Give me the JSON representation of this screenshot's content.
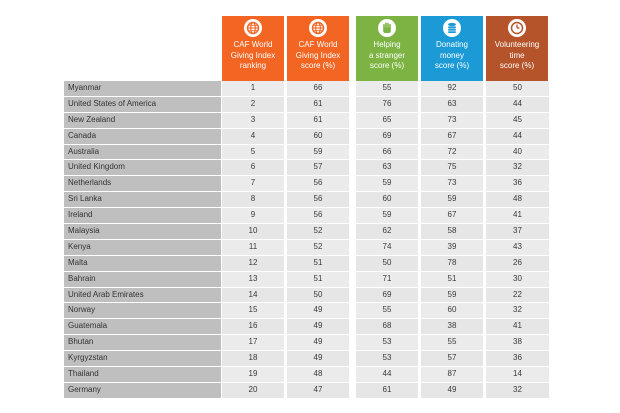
{
  "headers": [
    {
      "label": "CAF World\nGiving Index\nranking",
      "color": "#f26522",
      "icon": "globe-icon"
    },
    {
      "label": "CAF World\nGiving Index\nscore (%)",
      "color": "#f26522",
      "icon": "globe-icon"
    },
    {
      "label": "Helping\na stranger\nscore (%)",
      "color": "#7cb342",
      "icon": "hand-icon"
    },
    {
      "label": "Donating\nmoney\nscore (%)",
      "color": "#1b9ad6",
      "icon": "coins-icon"
    },
    {
      "label": "Volunteering\ntime\nscore (%)",
      "color": "#b5532a",
      "icon": "clock-icon"
    }
  ],
  "rows": [
    {
      "country": "Myanmar",
      "rank": "1",
      "giving": "66",
      "helping": "55",
      "donating": "92",
      "volunteering": "50"
    },
    {
      "country": "United States of America",
      "rank": "2",
      "giving": "61",
      "helping": "76",
      "donating": "63",
      "volunteering": "44"
    },
    {
      "country": "New Zealand",
      "rank": "3",
      "giving": "61",
      "helping": "65",
      "donating": "73",
      "volunteering": "45"
    },
    {
      "country": "Canada",
      "rank": "4",
      "giving": "60",
      "helping": "69",
      "donating": "67",
      "volunteering": "44"
    },
    {
      "country": "Australia",
      "rank": "5",
      "giving": "59",
      "helping": "66",
      "donating": "72",
      "volunteering": "40"
    },
    {
      "country": "United Kingdom",
      "rank": "6",
      "giving": "57",
      "helping": "63",
      "donating": "75",
      "volunteering": "32"
    },
    {
      "country": "Netherlands",
      "rank": "7",
      "giving": "56",
      "helping": "59",
      "donating": "73",
      "volunteering": "36"
    },
    {
      "country": "Sri Lanka",
      "rank": "8",
      "giving": "56",
      "helping": "60",
      "donating": "59",
      "volunteering": "48"
    },
    {
      "country": "Ireland",
      "rank": "9",
      "giving": "56",
      "helping": "59",
      "donating": "67",
      "volunteering": "41"
    },
    {
      "country": "Malaysia",
      "rank": "10",
      "giving": "52",
      "helping": "62",
      "donating": "58",
      "volunteering": "37"
    },
    {
      "country": "Kenya",
      "rank": "11",
      "giving": "52",
      "helping": "74",
      "donating": "39",
      "volunteering": "43"
    },
    {
      "country": "Malta",
      "rank": "12",
      "giving": "51",
      "helping": "50",
      "donating": "78",
      "volunteering": "26"
    },
    {
      "country": "Bahrain",
      "rank": "13",
      "giving": "51",
      "helping": "71",
      "donating": "51",
      "volunteering": "30"
    },
    {
      "country": "United Arab Emirates",
      "rank": "14",
      "giving": "50",
      "helping": "69",
      "donating": "59",
      "volunteering": "22"
    },
    {
      "country": "Norway",
      "rank": "15",
      "giving": "49",
      "helping": "55",
      "donating": "60",
      "volunteering": "32"
    },
    {
      "country": "Guatemala",
      "rank": "16",
      "giving": "49",
      "helping": "68",
      "donating": "38",
      "volunteering": "41"
    },
    {
      "country": "Bhutan",
      "rank": "17",
      "giving": "49",
      "helping": "53",
      "donating": "55",
      "volunteering": "38"
    },
    {
      "country": "Kyrgyzstan",
      "rank": "18",
      "giving": "49",
      "helping": "53",
      "donating": "57",
      "volunteering": "36"
    },
    {
      "country": "Thailand",
      "rank": "19",
      "giving": "48",
      "helping": "44",
      "donating": "87",
      "volunteering": "14"
    },
    {
      "country": "Germany",
      "rank": "20",
      "giving": "47",
      "helping": "61",
      "donating": "49",
      "volunteering": "32"
    }
  ]
}
